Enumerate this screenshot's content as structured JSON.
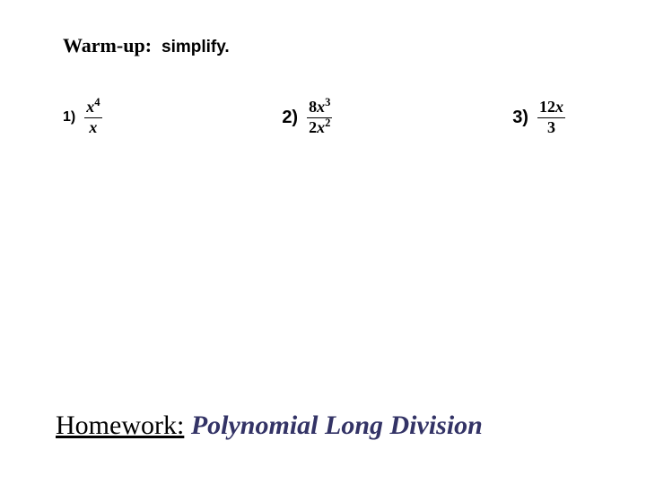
{
  "header": {
    "warmup": "Warm-up",
    "colon": ":",
    "instruction": "simplify."
  },
  "problems": {
    "p1": {
      "label": "1)",
      "num": "x",
      "num_exp": "4",
      "den": "x"
    },
    "p2": {
      "label": "2)",
      "num_coef": "8",
      "num_var": "x",
      "num_exp": "3",
      "den_coef": "2",
      "den_var": "x",
      "den_exp": "2"
    },
    "p3": {
      "label": "3)",
      "num_coef": "12",
      "num_var": "x",
      "den": "3"
    }
  },
  "footer": {
    "label": "Homework",
    "colon": ":",
    "title": "Polynomial Long Division"
  },
  "style": {
    "bg": "#ffffff",
    "text": "#000000",
    "footer_title_color": "#333366",
    "header_fontsize": 22,
    "problem_fontsize": 18,
    "footer_fontsize": 30
  }
}
